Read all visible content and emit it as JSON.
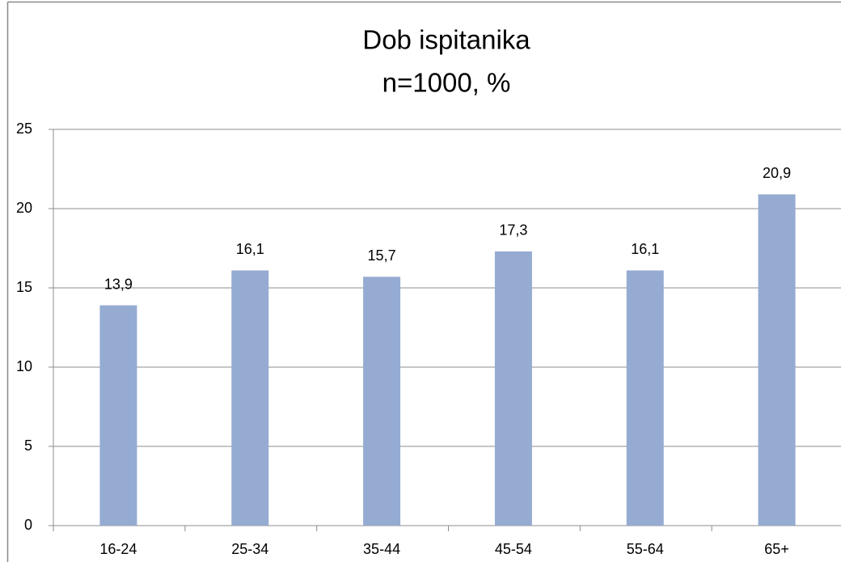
{
  "chart_data": {
    "type": "bar",
    "title": "Dob ispitanika",
    "subtitle": "n=1000, %",
    "categories": [
      "16-24",
      "25-34",
      "35-44",
      "45-54",
      "55-64",
      "65+"
    ],
    "values": [
      13.9,
      16.1,
      15.7,
      17.3,
      16.1,
      20.9
    ],
    "value_labels": [
      "13,9",
      "16,1",
      "15,7",
      "17,3",
      "16,1",
      "20,9"
    ],
    "color": "#95abd2",
    "ylim": [
      0,
      25
    ],
    "yticks": [
      0,
      5,
      10,
      15,
      20,
      25
    ],
    "grid": true
  }
}
